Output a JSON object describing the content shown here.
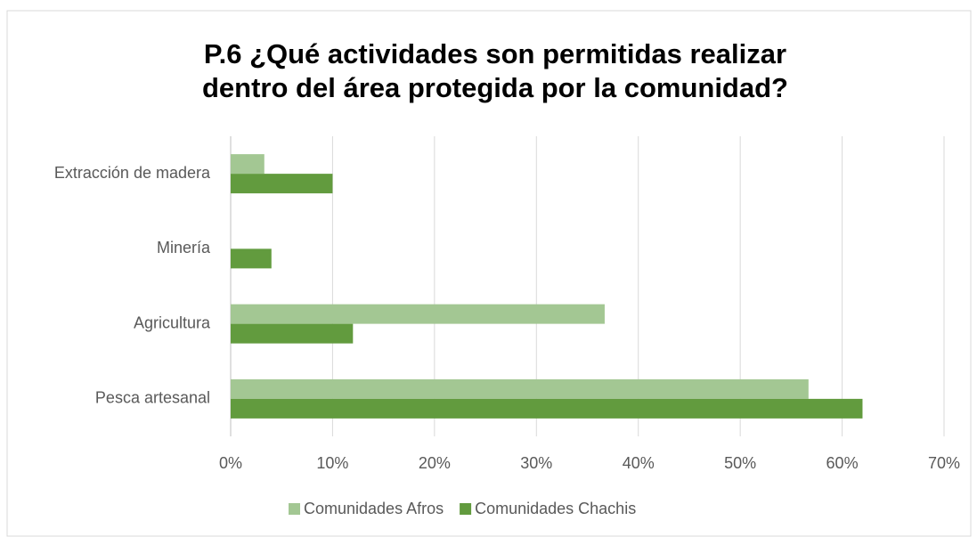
{
  "chart_data": {
    "type": "barh",
    "title": [
      "P.6 ¿Qué actividades son permitidas realizar",
      "dentro del área protegida por la comunidad?"
    ],
    "categories": [
      "Extracción de madera",
      "Minería",
      "Agricultura",
      "Pesca artesanal"
    ],
    "series": [
      {
        "name": "Comunidades Afros",
        "color": "#a3c793",
        "values": [
          3.3,
          0,
          36.7,
          56.7
        ]
      },
      {
        "name": "Comunidades Chachis",
        "color": "#629b3e",
        "values": [
          10,
          4,
          12,
          62
        ]
      }
    ],
    "xlim": [
      0,
      70
    ],
    "xticks": [
      {
        "value": 0,
        "label": "0%"
      },
      {
        "value": 10,
        "label": "10%"
      },
      {
        "value": 20,
        "label": "20%"
      },
      {
        "value": 30,
        "label": "30%"
      },
      {
        "value": 40,
        "label": "40%"
      },
      {
        "value": 50,
        "label": "50%"
      },
      {
        "value": 60,
        "label": "60%"
      },
      {
        "value": 70,
        "label": "70%"
      }
    ],
    "grid": true,
    "legend": "bottom"
  }
}
